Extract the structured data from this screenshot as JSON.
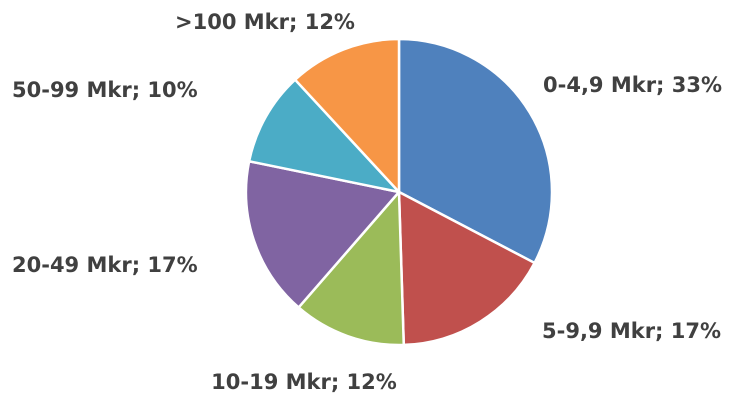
{
  "chart_data": {
    "type": "pie",
    "title": "",
    "start_angle_deg": 0,
    "direction": "clockwise",
    "slices": [
      {
        "category": "0-4,9 Mkr",
        "value": 33,
        "label": "0-4,9 Mkr; 33%",
        "color": "#4F81BD"
      },
      {
        "category": "5-9,9 Mkr",
        "value": 17,
        "label": "5-9,9 Mkr; 17%",
        "color": "#C0504D"
      },
      {
        "category": "10-19 Mkr",
        "value": 12,
        "label": "10-19 Mkr; 12%",
        "color": "#9BBB59"
      },
      {
        "category": "20-49 Mkr",
        "value": 17,
        "label": "20-49 Mkr; 17%",
        "color": "#8064A2"
      },
      {
        "category": "50-99 Mkr",
        "value": 10,
        "label": "50-99 Mkr; 10%",
        "color": "#4BACC6"
      },
      {
        "category": ">100 Mkr",
        "value": 12,
        "label": ">100 Mkr; 12%",
        "color": "#F79646"
      }
    ],
    "legend": "none",
    "data_labels": "outside"
  }
}
